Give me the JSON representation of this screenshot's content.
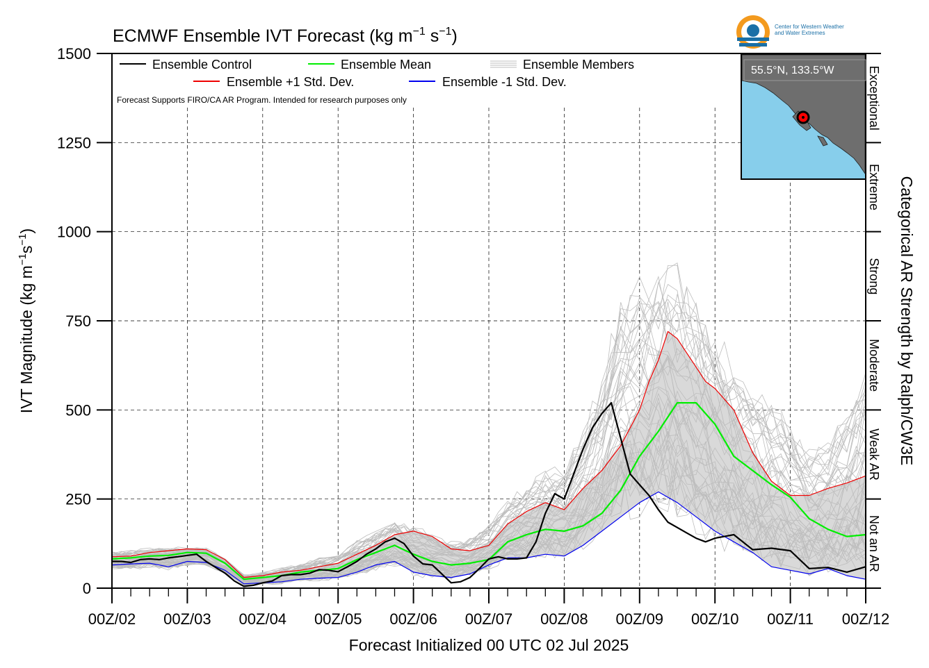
{
  "chart_data": {
    "type": "line",
    "title_main": "ECMWF Ensemble IVT Forecast (kg m",
    "title_exp1": "−1",
    "title_s": " s",
    "title_exp2": "−1",
    "title_close": ")",
    "ylabel_main": "IVT Magnitude (kg m",
    "ylabel_exp1": "−1",
    "ylabel_s": "s",
    "ylabel_exp2": "−1",
    "ylabel_close": ")",
    "xlabel": "Forecast Initialized 00 UTC 02 Jul 2025",
    "right_label": "Categorical AR Strength by Ralph/CW3E",
    "note": "Forecast Supports FIRO/CA AR Program. Intended for research purposes only",
    "ylim": [
      0,
      1500
    ],
    "xlim": [
      0,
      10
    ],
    "yticks": [
      0,
      250,
      500,
      750,
      1000,
      1250,
      1500
    ],
    "xtick_labels": [
      "00Z/02",
      "00Z/03",
      "00Z/04",
      "00Z/05",
      "00Z/06",
      "00Z/07",
      "00Z/08",
      "00Z/09",
      "00Z/10",
      "00Z/11",
      "00Z/12"
    ],
    "grid": true,
    "legend_position": "top-left",
    "legend": {
      "control": "Ensemble Control",
      "mean": "Ensemble Mean",
      "members": "Ensemble Members",
      "plus": "Ensemble +1 Std. Dev.",
      "minus": "Ensemble -1 Std. Dev."
    },
    "categories": [
      {
        "name": "Not an AR",
        "range": [
          0,
          250
        ]
      },
      {
        "name": "Weak AR",
        "range": [
          250,
          500
        ]
      },
      {
        "name": "Moderate",
        "range": [
          500,
          750
        ]
      },
      {
        "name": "Strong",
        "range": [
          750,
          1000
        ]
      },
      {
        "name": "Extreme",
        "range": [
          1000,
          1250
        ]
      },
      {
        "name": "Exceptional",
        "range": [
          1250,
          1500
        ]
      }
    ],
    "series": [
      {
        "name": "Ensemble Control",
        "color": "#000000",
        "x": [
          0,
          0.125,
          0.25,
          0.375,
          0.5,
          0.625,
          0.75,
          0.875,
          1.0,
          1.125,
          1.25,
          1.375,
          1.5,
          1.625,
          1.75,
          1.875,
          2.0,
          2.125,
          2.25,
          2.375,
          2.5,
          2.625,
          2.75,
          2.875,
          3.0,
          3.125,
          3.25,
          3.375,
          3.5,
          3.625,
          3.75,
          3.875,
          4.0,
          4.125,
          4.25,
          4.375,
          4.5,
          4.625,
          4.75,
          4.875,
          5.0,
          5.125,
          5.25,
          5.375,
          5.5,
          5.625,
          5.75,
          5.875,
          6.0,
          6.125,
          6.25,
          6.375,
          6.5,
          6.625,
          6.75,
          6.875,
          7.0,
          7.125,
          7.25,
          7.375,
          7.5,
          7.625,
          7.75,
          7.875,
          8.0,
          8.25,
          8.5,
          8.75,
          9.0,
          9.25,
          9.5,
          9.75,
          10.0
        ],
        "values": [
          75,
          75,
          72,
          80,
          82,
          80,
          85,
          88,
          92,
          95,
          75,
          58,
          42,
          20,
          5,
          8,
          15,
          20,
          35,
          38,
          38,
          42,
          52,
          50,
          46,
          60,
          75,
          95,
          110,
          130,
          140,
          125,
          90,
          68,
          65,
          40,
          15,
          18,
          30,
          55,
          82,
          88,
          82,
          82,
          85,
          130,
          210,
          265,
          250,
          320,
          390,
          450,
          490,
          520,
          420,
          320,
          290,
          260,
          220,
          185,
          170,
          155,
          140,
          130,
          140,
          150,
          108,
          112,
          105,
          55,
          58,
          45,
          60
        ]
      },
      {
        "name": "Ensemble Mean",
        "color": "#00ee00",
        "x": [
          0,
          0.25,
          0.5,
          0.75,
          1.0,
          1.25,
          1.5,
          1.75,
          2.0,
          2.25,
          2.5,
          2.75,
          3.0,
          3.25,
          3.5,
          3.75,
          4.0,
          4.25,
          4.5,
          4.75,
          5.0,
          5.25,
          5.5,
          5.75,
          6.0,
          6.25,
          6.5,
          6.75,
          7.0,
          7.25,
          7.5,
          7.75,
          8.0,
          8.25,
          8.5,
          8.75,
          9.0,
          9.25,
          9.5,
          9.75,
          10.0
        ],
        "values": [
          82,
          85,
          90,
          92,
          100,
          98,
          70,
          25,
          30,
          35,
          45,
          50,
          55,
          80,
          100,
          120,
          95,
          75,
          65,
          70,
          80,
          130,
          150,
          165,
          160,
          175,
          210,
          275,
          370,
          440,
          520,
          520,
          460,
          370,
          330,
          290,
          255,
          195,
          165,
          145,
          150
        ]
      },
      {
        "name": "Ensemble +1 Std. Dev.",
        "color": "#ee0000",
        "x": [
          0,
          0.25,
          0.5,
          0.75,
          1.0,
          1.25,
          1.5,
          1.75,
          2.0,
          2.25,
          2.5,
          2.75,
          3.0,
          3.25,
          3.5,
          3.75,
          4.0,
          4.25,
          4.5,
          4.75,
          5.0,
          5.25,
          5.5,
          5.75,
          6.0,
          6.25,
          6.5,
          6.75,
          7.0,
          7.125,
          7.25,
          7.375,
          7.5,
          7.625,
          7.75,
          7.875,
          8.0,
          8.25,
          8.5,
          8.75,
          9.0,
          9.25,
          9.5,
          9.75,
          10.0
        ],
        "values": [
          88,
          90,
          100,
          105,
          110,
          108,
          80,
          30,
          35,
          45,
          50,
          60,
          70,
          95,
          120,
          150,
          160,
          145,
          110,
          105,
          120,
          180,
          215,
          240,
          220,
          280,
          330,
          400,
          500,
          580,
          640,
          720,
          700,
          660,
          620,
          580,
          560,
          500,
          380,
          300,
          260,
          260,
          280,
          295,
          315
        ]
      },
      {
        "name": "Ensemble -1 Std. Dev.",
        "color": "#0000ee",
        "x": [
          0,
          0.25,
          0.5,
          0.75,
          1.0,
          1.25,
          1.5,
          1.75,
          2.0,
          2.25,
          2.5,
          2.75,
          3.0,
          3.25,
          3.5,
          3.75,
          4.0,
          4.25,
          4.5,
          4.75,
          5.0,
          5.25,
          5.5,
          5.75,
          6.0,
          6.25,
          6.5,
          6.75,
          7.0,
          7.25,
          7.5,
          7.75,
          8.0,
          8.25,
          8.5,
          8.75,
          9.0,
          9.25,
          9.5,
          9.75,
          10.0
        ],
        "values": [
          65,
          68,
          70,
          60,
          75,
          72,
          50,
          12,
          15,
          18,
          25,
          28,
          30,
          45,
          65,
          75,
          45,
          35,
          30,
          40,
          65,
          85,
          85,
          95,
          90,
          120,
          160,
          200,
          240,
          270,
          240,
          200,
          160,
          130,
          100,
          60,
          50,
          40,
          55,
          35,
          25
        ]
      },
      {
        "name": "Ensemble Members",
        "color": "#bdbdbd",
        "envelope_upper": [
          105,
          110,
          115,
          118,
          120,
          115,
          85,
          40,
          45,
          60,
          70,
          90,
          100,
          140,
          170,
          200,
          180,
          160,
          140,
          150,
          190,
          260,
          300,
          350,
          360,
          480,
          620,
          860,
          900,
          950,
          940,
          860,
          780,
          660,
          600,
          560,
          500,
          420,
          430,
          520,
          660
        ],
        "envelope_lower": [
          50,
          50,
          55,
          48,
          60,
          60,
          40,
          5,
          8,
          10,
          15,
          18,
          20,
          30,
          45,
          55,
          30,
          22,
          20,
          28,
          45,
          70,
          75,
          80,
          75,
          100,
          140,
          170,
          180,
          200,
          160,
          120,
          90,
          80,
          60,
          35,
          30,
          25,
          30,
          20,
          15
        ],
        "envelope_x": [
          0,
          0.25,
          0.5,
          0.75,
          1.0,
          1.25,
          1.5,
          1.75,
          2.0,
          2.25,
          2.5,
          2.75,
          3.0,
          3.25,
          3.5,
          3.75,
          4.0,
          4.25,
          4.5,
          4.75,
          5.0,
          5.25,
          5.5,
          5.75,
          6.0,
          6.25,
          6.5,
          6.75,
          7.0,
          7.25,
          7.5,
          7.75,
          8.0,
          8.25,
          8.5,
          8.75,
          9.0,
          9.25,
          9.5,
          9.75,
          10.0
        ]
      }
    ]
  },
  "inset": {
    "location_label": "55.5°N, 133.5°W",
    "ocean_color": "#87ceeb",
    "land_color": "#6e6e6e",
    "marker_color": "#ff0000"
  },
  "logo": {
    "line1": "Center for Western Weather",
    "line2": "and Water Extremes",
    "orange": "#f39a1e",
    "blue": "#1a6fa6"
  }
}
